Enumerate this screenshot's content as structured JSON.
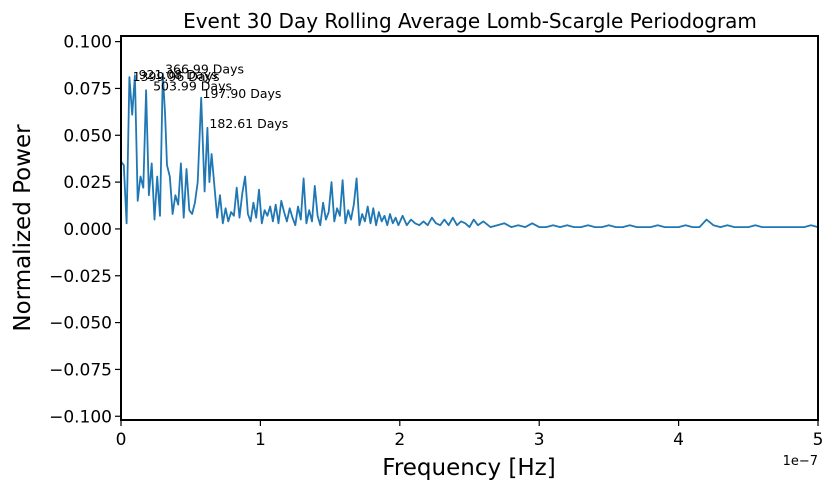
{
  "chart_data": {
    "type": "line",
    "title": "Event 30 Day Rolling Average Lomb-Scargle Periodogram",
    "xlabel": "Frequency [Hz]",
    "ylabel": "Normalized Power",
    "x_offset_label": "1e−7",
    "xlim": [
      0,
      5
    ],
    "ylim": [
      -0.102,
      0.103
    ],
    "x_ticks": [
      0,
      1,
      2,
      3,
      4,
      5
    ],
    "x_tick_labels": [
      "0",
      "1",
      "2",
      "3",
      "4",
      "5"
    ],
    "y_ticks": [
      -0.1,
      -0.075,
      -0.05,
      -0.025,
      0.0,
      0.025,
      0.05,
      0.075,
      0.1
    ],
    "y_tick_labels": [
      "−0.100",
      "−0.075",
      "−0.050",
      "−0.025",
      "0.000",
      "0.025",
      "0.050",
      "0.075",
      "0.100"
    ],
    "grid": false,
    "line_color": "#1f77b4",
    "series": [
      {
        "x": [
          0.0,
          0.02,
          0.04,
          0.06,
          0.08,
          0.1,
          0.12,
          0.14,
          0.16,
          0.18,
          0.2,
          0.22,
          0.24,
          0.26,
          0.28,
          0.3,
          0.316,
          0.33,
          0.35,
          0.37,
          0.39,
          0.41,
          0.43,
          0.45,
          0.47,
          0.49,
          0.51,
          0.53,
          0.55,
          0.575,
          0.6,
          0.62,
          0.634,
          0.65,
          0.67,
          0.69,
          0.71,
          0.73,
          0.75,
          0.77,
          0.79,
          0.81,
          0.83,
          0.85,
          0.87,
          0.89,
          0.91,
          0.93,
          0.95,
          0.97,
          0.99,
          1.01,
          1.03,
          1.05,
          1.07,
          1.09,
          1.11,
          1.13,
          1.15,
          1.17,
          1.19,
          1.21,
          1.23,
          1.25,
          1.27,
          1.29,
          1.31,
          1.33,
          1.35,
          1.37,
          1.39,
          1.41,
          1.43,
          1.45,
          1.47,
          1.49,
          1.51,
          1.53,
          1.55,
          1.57,
          1.59,
          1.61,
          1.63,
          1.65,
          1.67,
          1.69,
          1.71,
          1.73,
          1.75,
          1.77,
          1.79,
          1.81,
          1.83,
          1.85,
          1.87,
          1.89,
          1.91,
          1.93,
          1.95,
          1.97,
          1.99,
          2.02,
          2.05,
          2.08,
          2.11,
          2.14,
          2.17,
          2.2,
          2.23,
          2.26,
          2.29,
          2.32,
          2.35,
          2.38,
          2.41,
          2.44,
          2.47,
          2.5,
          2.53,
          2.56,
          2.6,
          2.65,
          2.7,
          2.75,
          2.8,
          2.85,
          2.9,
          2.95,
          3.0,
          3.05,
          3.1,
          3.15,
          3.2,
          3.25,
          3.3,
          3.35,
          3.4,
          3.45,
          3.5,
          3.55,
          3.6,
          3.65,
          3.7,
          3.75,
          3.8,
          3.85,
          3.9,
          3.95,
          4.0,
          4.05,
          4.1,
          4.15,
          4.2,
          4.25,
          4.3,
          4.35,
          4.4,
          4.45,
          4.5,
          4.55,
          4.6,
          4.65,
          4.7,
          4.75,
          4.8,
          4.85,
          4.9,
          4.95,
          5.0
        ],
        "y": [
          0.036,
          0.034,
          0.003,
          0.081,
          0.061,
          0.082,
          0.015,
          0.028,
          0.022,
          0.074,
          0.018,
          0.035,
          0.005,
          0.028,
          0.007,
          0.083,
          0.061,
          0.034,
          0.028,
          0.008,
          0.018,
          0.013,
          0.035,
          0.006,
          0.032,
          0.01,
          0.008,
          0.014,
          0.025,
          0.07,
          0.02,
          0.054,
          0.025,
          0.04,
          0.023,
          0.006,
          0.018,
          0.003,
          0.011,
          0.004,
          0.009,
          0.007,
          0.022,
          0.006,
          0.019,
          0.028,
          0.008,
          0.004,
          0.014,
          0.006,
          0.021,
          0.003,
          0.01,
          0.007,
          0.012,
          0.004,
          0.013,
          0.003,
          0.015,
          0.009,
          0.004,
          0.011,
          0.006,
          0.002,
          0.012,
          0.005,
          0.027,
          0.003,
          0.01,
          0.004,
          0.023,
          0.007,
          0.002,
          0.014,
          0.005,
          0.009,
          0.025,
          0.004,
          0.011,
          0.007,
          0.026,
          0.003,
          0.01,
          0.005,
          0.013,
          0.027,
          0.002,
          0.008,
          0.004,
          0.012,
          0.003,
          0.011,
          0.002,
          0.009,
          0.004,
          0.007,
          0.002,
          0.008,
          0.003,
          0.006,
          0.002,
          0.007,
          0.002,
          0.005,
          0.003,
          0.002,
          0.004,
          0.002,
          0.006,
          0.003,
          0.002,
          0.005,
          0.002,
          0.006,
          0.002,
          0.004,
          0.003,
          0.001,
          0.005,
          0.002,
          0.004,
          0.001,
          0.002,
          0.003,
          0.001,
          0.002,
          0.001,
          0.003,
          0.001,
          0.001,
          0.002,
          0.001,
          0.002,
          0.001,
          0.001,
          0.002,
          0.001,
          0.001,
          0.002,
          0.001,
          0.001,
          0.002,
          0.001,
          0.001,
          0.001,
          0.002,
          0.001,
          0.001,
          0.001,
          0.002,
          0.001,
          0.001,
          0.005,
          0.002,
          0.001,
          0.002,
          0.001,
          0.001,
          0.001,
          0.002,
          0.001,
          0.001,
          0.001,
          0.001,
          0.001,
          0.001,
          0.001,
          0.002,
          0.001
        ]
      }
    ],
    "annotations": [
      {
        "text": "366.99 Days",
        "x": 0.316,
        "y": 0.083
      },
      {
        "text": "921.08 Days",
        "x": 0.126,
        "y": 0.08
      },
      {
        "text": "1399.96 Days",
        "x": 0.083,
        "y": 0.079
      },
      {
        "text": "503.99 Days",
        "x": 0.23,
        "y": 0.074
      },
      {
        "text": "197.90 Days",
        "x": 0.585,
        "y": 0.07
      },
      {
        "text": "182.61 Days",
        "x": 0.634,
        "y": 0.054
      }
    ]
  }
}
